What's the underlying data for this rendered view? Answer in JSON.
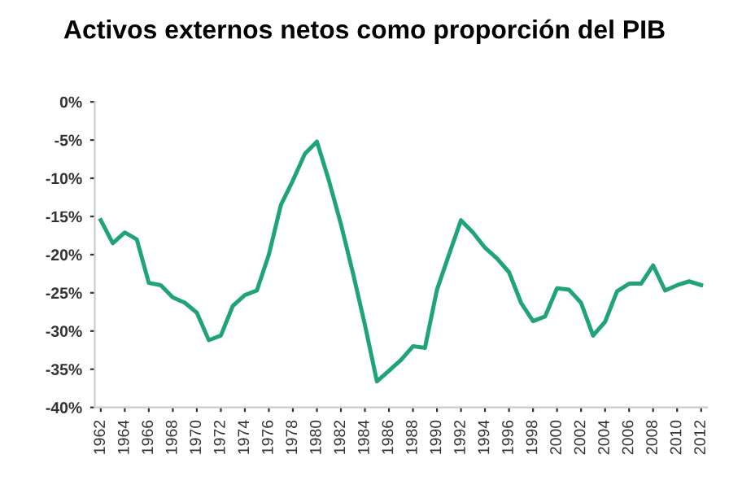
{
  "chart_data": {
    "type": "line",
    "title": "Activos externos netos como proporción del PIB",
    "categories": [
      "1962",
      null,
      "1964",
      null,
      "1966",
      null,
      "1968",
      null,
      "1970",
      null,
      "1972",
      null,
      "1974",
      null,
      "1976",
      null,
      "1978",
      null,
      "1980",
      null,
      "1982",
      null,
      "1984",
      null,
      "1986",
      null,
      "1988",
      null,
      "1990",
      null,
      "1992",
      null,
      "1994",
      null,
      "1996",
      null,
      "1998",
      null,
      "2000",
      null,
      "2002",
      null,
      "2004",
      null,
      "2006",
      null,
      "2008",
      null,
      "2010",
      null,
      "2012"
    ],
    "series": [
      {
        "color": "#1fa37a",
        "values": [
          -15.5,
          -18.5,
          -17.1,
          -18,
          -23.7,
          -24,
          -25.6,
          -26.3,
          -27.6,
          -31.2,
          -30.6,
          -26.7,
          -25.3,
          -24.7,
          -20,
          -13.5,
          -10.3,
          -6.8,
          -5.2,
          -10.3,
          -16,
          -22.4,
          -29.2,
          -36.6,
          -35.2,
          -33.8,
          -32,
          -32.2,
          -24.6,
          -20,
          -15.5,
          -17.1,
          -19.1,
          -20.5,
          -22.3,
          -26.3,
          -28.7,
          -28.1,
          -24.4,
          -24.6,
          -26.3,
          -30.6,
          -28.8,
          -24.8,
          -23.8,
          -23.8,
          -21.4,
          -24.7,
          -24,
          -23.5,
          -24
        ]
      }
    ],
    "ylim": [
      -40,
      0
    ],
    "yticks": [
      {
        "value": 0,
        "label": "0%"
      },
      {
        "value": -5,
        "label": "-5%"
      },
      {
        "value": -10,
        "label": "-10%"
      },
      {
        "value": -15,
        "label": "-15%"
      },
      {
        "value": -20,
        "label": "-20%"
      },
      {
        "value": -25,
        "label": "-25%"
      },
      {
        "value": -30,
        "label": "-30%"
      },
      {
        "value": -35,
        "label": "-35%"
      },
      {
        "value": -40,
        "label": "-40%"
      }
    ],
    "grid": false,
    "legend": false,
    "marker": "none",
    "line_style": "solid"
  }
}
